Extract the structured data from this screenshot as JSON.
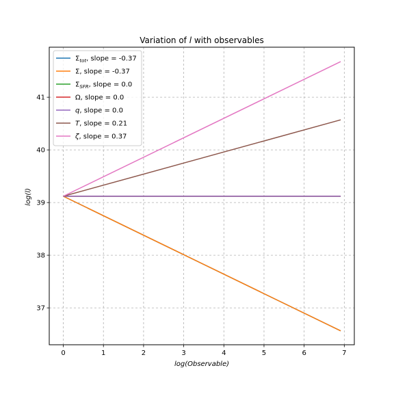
{
  "chart_data": {
    "type": "line",
    "title": "Variation of l with observables",
    "xlabel": "log(Observable)",
    "ylabel": "log(l)",
    "xlim": [
      -0.35,
      7.25
    ],
    "ylim": [
      36.3,
      41.95
    ],
    "xticks": [
      0,
      1,
      2,
      3,
      4,
      5,
      6,
      7
    ],
    "yticks": [
      37,
      38,
      39,
      40,
      41
    ],
    "grid": true,
    "grid_style": "dashed",
    "legend_position": "upper-left",
    "x_range": [
      0,
      6.91
    ],
    "intercept": 39.12,
    "series": [
      {
        "name": "Σtot,  slope = -0.37",
        "symbol": "Σ",
        "sub": "tot",
        "suffix": ",  slope = -0.37",
        "slope": -0.37,
        "color": "#1f77b4"
      },
      {
        "name": "Σ,  slope = -0.37",
        "symbol": "Σ",
        "sub": "",
        "suffix": ",  slope = -0.37",
        "slope": -0.37,
        "color": "#ff7f0e"
      },
      {
        "name": "ΣSFR,  slope = 0.0",
        "symbol": "Σ",
        "sub": "SFR",
        "suffix": ",  slope = 0.0",
        "slope": 0.0,
        "color": "#2ca02c"
      },
      {
        "name": "Ω,  slope = 0.0",
        "symbol": "Ω",
        "sub": "",
        "suffix": ",  slope = 0.0",
        "slope": 0.0,
        "color": "#d62728"
      },
      {
        "name": "q,  slope = 0.0",
        "symbol": "q",
        "sub": "",
        "suffix": ",  slope = 0.0",
        "slope": 0.0,
        "color": "#9467bd",
        "italic": true
      },
      {
        "name": "T,  slope = 0.21",
        "symbol": "T",
        "sub": "",
        "suffix": ",  slope = 0.21",
        "slope": 0.21,
        "color": "#8c564b",
        "italic": true
      },
      {
        "name": "ζ,  slope = 0.37",
        "symbol": "ζ",
        "sub": "",
        "suffix": ",  slope = 0.37",
        "slope": 0.37,
        "color": "#e377c2",
        "italic": true
      }
    ]
  }
}
